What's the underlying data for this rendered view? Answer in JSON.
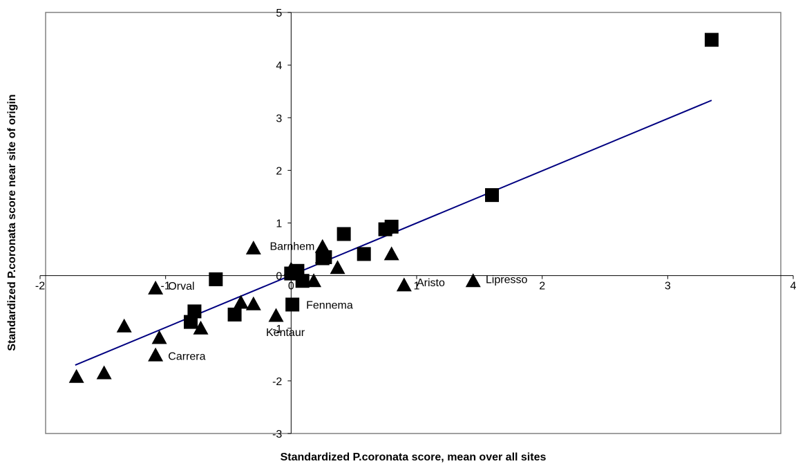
{
  "chart_data": {
    "type": "scatter",
    "title": "",
    "xlabel": "Standardized P.coronata score, mean over all sites",
    "ylabel": "Standardized P.coronata score near site of origin",
    "xlim": [
      -2,
      4
    ],
    "ylim": [
      -3,
      5
    ],
    "xticks": [
      -2,
      -1,
      0,
      1,
      2,
      3,
      4
    ],
    "yticks": [
      -3,
      -2,
      -1,
      0,
      1,
      2,
      3,
      4,
      5
    ],
    "grid": false,
    "legend": "none",
    "colors": {
      "marker": "#000000",
      "trendline": "#000080",
      "frame": "#808080"
    },
    "series": [
      {
        "marker": "square",
        "points": [
          {
            "x": 3.35,
            "y": 4.48
          },
          {
            "x": 1.6,
            "y": 1.53
          },
          {
            "x": 0.8,
            "y": 0.93
          },
          {
            "x": 0.75,
            "y": 0.88
          },
          {
            "x": 0.42,
            "y": 0.79
          },
          {
            "x": 0.58,
            "y": 0.41
          },
          {
            "x": 0.27,
            "y": 0.35
          },
          {
            "x": 0.25,
            "y": 0.33
          },
          {
            "x": 0.05,
            "y": 0.09
          },
          {
            "x": 0.0,
            "y": 0.04
          },
          {
            "x": 0.09,
            "y": -0.1
          },
          {
            "x": 0.01,
            "y": -0.55
          },
          {
            "x": -0.6,
            "y": -0.07
          },
          {
            "x": -0.77,
            "y": -0.68
          },
          {
            "x": -0.8,
            "y": -0.88
          },
          {
            "x": -0.45,
            "y": -0.74
          }
        ]
      },
      {
        "marker": "triangle",
        "points": [
          {
            "x": 0.25,
            "y": 0.55
          },
          {
            "x": -0.3,
            "y": 0.52
          },
          {
            "x": 0.25,
            "y": 0.35
          },
          {
            "x": 0.8,
            "y": 0.41
          },
          {
            "x": 0.37,
            "y": 0.15
          },
          {
            "x": 0.0,
            "y": 0.12
          },
          {
            "x": 0.18,
            "y": -0.1
          },
          {
            "x": 0.9,
            "y": -0.18
          },
          {
            "x": 1.45,
            "y": -0.1
          },
          {
            "x": -1.08,
            "y": -0.24
          },
          {
            "x": -0.4,
            "y": -0.51
          },
          {
            "x": -0.3,
            "y": -0.54
          },
          {
            "x": -0.12,
            "y": -0.76
          },
          {
            "x": -1.33,
            "y": -0.96
          },
          {
            "x": -0.72,
            "y": -1.0
          },
          {
            "x": -1.05,
            "y": -1.18
          },
          {
            "x": -1.08,
            "y": -1.51
          },
          {
            "x": -1.49,
            "y": -1.85
          },
          {
            "x": -1.71,
            "y": -1.92
          }
        ]
      }
    ],
    "annotations": [
      {
        "text": "Barnhem",
        "x": -0.17,
        "y": 0.49
      },
      {
        "text": "Orval",
        "x": -0.98,
        "y": -0.27
      },
      {
        "text": "Aristo",
        "x": 1.0,
        "y": -0.2
      },
      {
        "text": "Lipresso",
        "x": 1.55,
        "y": -0.14
      },
      {
        "text": "Fennema",
        "x": 0.12,
        "y": -0.63
      },
      {
        "text": "Kentaur",
        "x": -0.2,
        "y": -1.15
      },
      {
        "text": "Carrera",
        "x": -0.98,
        "y": -1.6
      }
    ],
    "trendline": {
      "x": [
        -1.72,
        3.35
      ],
      "y": [
        -1.7,
        3.33
      ]
    }
  }
}
